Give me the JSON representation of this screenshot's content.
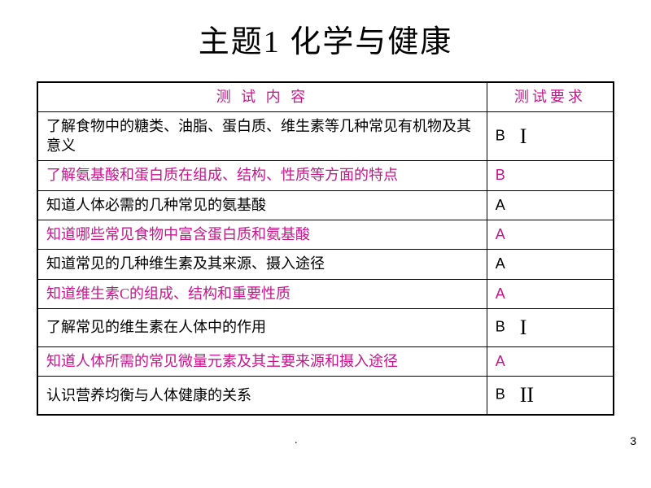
{
  "title": "主题1  化学与健康",
  "header": {
    "content_label": "测 试 内 容",
    "req_label": "测试要求"
  },
  "header_color": "#c7158c",
  "pink": "#c7158c",
  "black": "#000000",
  "page_number": "3",
  "rows": [
    {
      "content": "了解食物中的糖类、油脂、蛋白质、维生素等几种常见有机物及其意义",
      "req_letter": "B",
      "req_roman": "I",
      "content_color": "#000000",
      "req_color": "#000000"
    },
    {
      "content": "了解氨基酸和蛋白质在组成、结构、性质等方面的特点",
      "req_letter": "B",
      "req_roman": "",
      "content_color": "#c7158c",
      "req_color": "#c7158c"
    },
    {
      "content": "知道人体必需的几种常见的氨基酸",
      "req_letter": "A",
      "req_roman": "",
      "content_color": "#000000",
      "req_color": "#000000"
    },
    {
      "content": "知道哪些常见食物中富含蛋白质和氨基酸",
      "req_letter": "A",
      "req_roman": "",
      "content_color": "#c7158c",
      "req_color": "#c7158c"
    },
    {
      "content": "知道常见的几种维生素及其来源、摄入途径",
      "req_letter": "A",
      "req_roman": "",
      "content_color": "#000000",
      "req_color": "#000000"
    },
    {
      "content": "知道维生素C的组成、结构和重要性质",
      "req_letter": "A",
      "req_roman": "",
      "content_color": "#c7158c",
      "req_color": "#c7158c"
    },
    {
      "content": "了解常见的维生素在人体中的作用",
      "req_letter": "B",
      "req_roman": "I",
      "content_color": "#000000",
      "req_color": "#000000"
    },
    {
      "content": "知道人体所需的常见微量元素及其主要来源和摄入途径",
      "req_letter": "A",
      "req_roman": "",
      "content_color": "#c7158c",
      "req_color": "#c7158c"
    },
    {
      "content": "认识营养均衡与人体健康的关系",
      "req_letter": "B",
      "req_roman": "II",
      "content_color": "#000000",
      "req_color": "#000000"
    }
  ]
}
